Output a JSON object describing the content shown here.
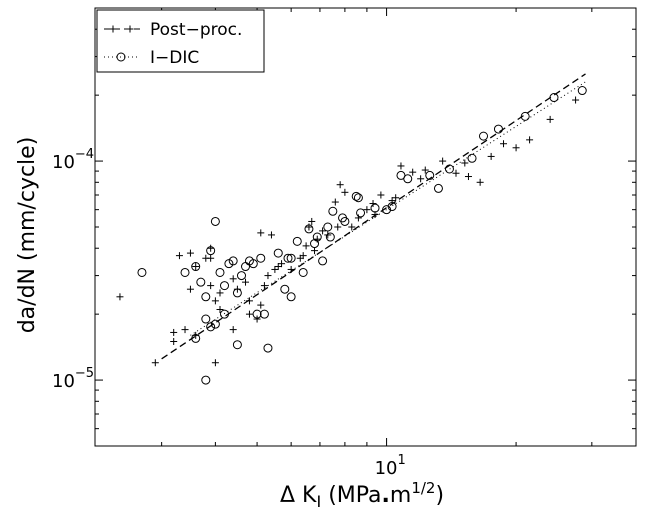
{
  "chart_data": {
    "type": "scatter",
    "xscale": "log",
    "yscale": "log",
    "xlim": [
      2.1,
      38
    ],
    "ylim": [
      5e-06,
      0.0005
    ],
    "x_tick_label": {
      "base": "10",
      "exp": "1",
      "value": 10
    },
    "y_tick_labels": [
      {
        "base": "10",
        "exp": "−4",
        "value": 0.0001
      },
      {
        "base": "10",
        "exp": "−5",
        "value": 1e-05
      }
    ],
    "xlabel": {
      "prefix": "Δ K",
      "sub": "I",
      "unit": " (MPa",
      "dot": ".",
      "m": "m",
      "sup": "1/2",
      "close": ")"
    },
    "ylabel": "da/dN (mm/cycle)",
    "grid": false,
    "legend_position": "top-left",
    "series": [
      {
        "name": "Post−proc.",
        "marker": "plus",
        "line_style": "dashed",
        "color": "#000000",
        "fit_line": [
          [
            3.0,
            1.25e-05
          ],
          [
            29.0,
            0.00025
          ]
        ],
        "points": [
          [
            2.4,
            2.4e-05
          ],
          [
            2.9,
            1.2e-05
          ],
          [
            3.2,
            1.65e-05
          ],
          [
            3.3,
            3.7e-05
          ],
          [
            3.5,
            3.8e-05
          ],
          [
            3.6,
            3.3e-05
          ],
          [
            3.5,
            2.6e-05
          ],
          [
            3.9,
            2.7e-05
          ],
          [
            3.8,
            3.6e-05
          ],
          [
            3.9,
            4e-05
          ],
          [
            4.0,
            2.3e-05
          ],
          [
            4.1,
            2.5e-05
          ],
          [
            3.6,
            1.6e-05
          ],
          [
            3.4,
            1.7e-05
          ],
          [
            4.0,
            1.2e-05
          ],
          [
            4.1,
            2.1e-05
          ],
          [
            4.4,
            1.7e-05
          ],
          [
            4.5,
            2.6e-05
          ],
          [
            4.8,
            2.3e-05
          ],
          [
            4.8,
            2e-05
          ],
          [
            5.0,
            1.9e-05
          ],
          [
            5.1,
            2.2e-05
          ],
          [
            5.3,
            3e-05
          ],
          [
            5.6,
            3.3e-05
          ],
          [
            5.1,
            4.7e-05
          ],
          [
            5.4,
            4.6e-05
          ],
          [
            4.4,
            2.9e-05
          ],
          [
            3.9,
            3.6e-05
          ],
          [
            6.0,
            3.2e-05
          ],
          [
            6.3,
            3.6e-05
          ],
          [
            6.5,
            4.1e-05
          ],
          [
            6.6,
            5e-05
          ],
          [
            6.7,
            5.3e-05
          ],
          [
            6.9,
            4.4e-05
          ],
          [
            7.3,
            4.6e-05
          ],
          [
            7.7,
            5e-05
          ],
          [
            7.6,
            6.5e-05
          ],
          [
            7.8,
            7.8e-05
          ],
          [
            8.3,
            5e-05
          ],
          [
            8.6,
            5.5e-05
          ],
          [
            9.0,
            6e-05
          ],
          [
            9.3,
            6.4e-05
          ],
          [
            9.7,
            7e-05
          ],
          [
            10.3,
            6.6e-05
          ],
          [
            10.8,
            9.5e-05
          ],
          [
            11.5,
            8.9e-05
          ],
          [
            12.3,
            9.1e-05
          ],
          [
            13.5,
            0.0001
          ],
          [
            15.2,
            9.8e-05
          ],
          [
            15.5,
            8.5e-05
          ],
          [
            16.5,
            8e-05
          ],
          [
            18.7,
            0.00012
          ],
          [
            21.5,
            0.000125
          ],
          [
            24.0,
            0.000155
          ],
          [
            27.5,
            0.00019
          ],
          [
            6.4,
            3.7e-05
          ],
          [
            5.7,
            3.4e-05
          ],
          [
            3.2,
            1.5e-05
          ],
          [
            4.7,
            2.8e-05
          ],
          [
            8.0,
            7.2e-05
          ],
          [
            7.1,
            4.8e-05
          ],
          [
            5.2,
            2.7e-05
          ],
          [
            5.5,
            3.2e-05
          ],
          [
            6.8,
            3.9e-05
          ],
          [
            9.4,
            5.7e-05
          ],
          [
            10.5,
            6.8e-05
          ],
          [
            12.0,
            8.3e-05
          ],
          [
            14.5,
            8.8e-05
          ],
          [
            17.5,
            0.000105
          ],
          [
            20.0,
            0.000115
          ]
        ]
      },
      {
        "name": "I−DIC",
        "marker": "circle",
        "line_style": "dotted",
        "color": "#000000",
        "fit_line": [
          [
            3.5,
            1.6e-05
          ],
          [
            29.0,
            0.00023
          ]
        ],
        "points": [
          [
            2.7,
            3.1e-05
          ],
          [
            3.4,
            3.1e-05
          ],
          [
            3.6,
            3.3e-05
          ],
          [
            3.7,
            2.8e-05
          ],
          [
            3.8,
            2.4e-05
          ],
          [
            3.9,
            3.9e-05
          ],
          [
            4.0,
            5.3e-05
          ],
          [
            4.1,
            3.1e-05
          ],
          [
            4.2,
            2.7e-05
          ],
          [
            4.3,
            3.4e-05
          ],
          [
            4.4,
            3.5e-05
          ],
          [
            3.6,
            1.55e-05
          ],
          [
            3.8,
            1.9e-05
          ],
          [
            3.9,
            1.75e-05
          ],
          [
            3.8,
            1e-05
          ],
          [
            4.0,
            1.8e-05
          ],
          [
            4.2,
            2e-05
          ],
          [
            4.5,
            2.5e-05
          ],
          [
            4.6,
            3e-05
          ],
          [
            4.7,
            3.3e-05
          ],
          [
            4.9,
            3.4e-05
          ],
          [
            5.0,
            2e-05
          ],
          [
            5.2,
            2e-05
          ],
          [
            4.5,
            1.45e-05
          ],
          [
            5.3,
            1.4e-05
          ],
          [
            5.6,
            3.8e-05
          ],
          [
            5.9,
            3.6e-05
          ],
          [
            6.0,
            3.6e-05
          ],
          [
            6.2,
            4.3e-05
          ],
          [
            6.4,
            3.1e-05
          ],
          [
            5.8,
            2.6e-05
          ],
          [
            6.0,
            2.4e-05
          ],
          [
            6.6,
            4.9e-05
          ],
          [
            6.9,
            4.5e-05
          ],
          [
            7.1,
            3.5e-05
          ],
          [
            7.4,
            4.5e-05
          ],
          [
            7.5,
            5.9e-05
          ],
          [
            7.9,
            5.5e-05
          ],
          [
            8.0,
            5.3e-05
          ],
          [
            8.7,
            5.8e-05
          ],
          [
            8.5,
            6.9e-05
          ],
          [
            8.6,
            6.8e-05
          ],
          [
            9.4,
            6.1e-05
          ],
          [
            10.0,
            6e-05
          ],
          [
            10.3,
            6.2e-05
          ],
          [
            10.8,
            8.6e-05
          ],
          [
            11.2,
            8.3e-05
          ],
          [
            12.6,
            8.6e-05
          ],
          [
            13.2,
            7.5e-05
          ],
          [
            14.0,
            9.2e-05
          ],
          [
            15.8,
            0.000103
          ],
          [
            16.8,
            0.00013
          ],
          [
            18.2,
            0.00014
          ],
          [
            21.0,
            0.00016
          ],
          [
            24.5,
            0.000195
          ],
          [
            28.5,
            0.00021
          ],
          [
            4.8,
            3.5e-05
          ],
          [
            5.1,
            3.6e-05
          ],
          [
            6.8,
            4.2e-05
          ],
          [
            7.3,
            5e-05
          ]
        ]
      }
    ]
  }
}
